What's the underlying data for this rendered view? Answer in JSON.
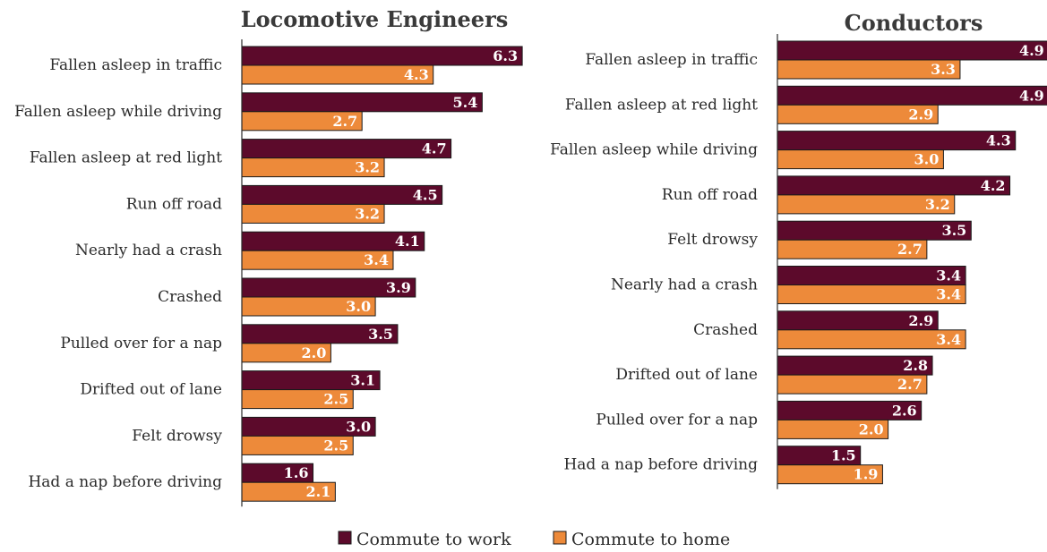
{
  "chart_data": [
    {
      "type": "bar",
      "orientation": "horizontal",
      "title": "Locomotive Engineers",
      "categories": [
        "Fallen asleep in traffic",
        "Fallen asleep while driving",
        "Fallen asleep at red light",
        "Run off road",
        "Nearly had a crash",
        "Crashed",
        "Pulled over for a nap",
        "Drifted out of lane",
        "Felt drowsy",
        "Had a nap before driving"
      ],
      "series": [
        {
          "name": "Commute to work",
          "values": [
            6.3,
            5.4,
            4.7,
            4.5,
            4.1,
            3.9,
            3.5,
            3.1,
            3.0,
            1.6
          ]
        },
        {
          "name": "Commute to home",
          "values": [
            4.3,
            2.7,
            3.2,
            3.2,
            3.4,
            3.0,
            2.0,
            2.5,
            2.5,
            2.1
          ]
        }
      ],
      "xlim": [
        0,
        6.5
      ],
      "grid": false,
      "data_labels": true
    },
    {
      "type": "bar",
      "orientation": "horizontal",
      "title": "Conductors",
      "categories": [
        "Fallen asleep in traffic",
        "Fallen asleep at red light",
        "Fallen asleep while driving",
        "Run off road",
        "Felt drowsy",
        "Nearly had a crash",
        "Crashed",
        "Drifted out of lane",
        "Pulled over for a nap",
        "Had a nap before driving"
      ],
      "series": [
        {
          "name": "Commute to work",
          "values": [
            4.9,
            4.9,
            4.3,
            4.2,
            3.5,
            3.4,
            2.9,
            2.8,
            2.6,
            1.5
          ]
        },
        {
          "name": "Commute to home",
          "values": [
            3.3,
            2.9,
            3.0,
            3.2,
            2.7,
            3.4,
            3.4,
            2.7,
            2.0,
            1.9
          ]
        }
      ],
      "xlim": [
        0,
        5.0
      ],
      "grid": false,
      "data_labels": true
    }
  ],
  "legend": {
    "placement": "bottom-center",
    "items": [
      {
        "label": "Commute to work",
        "color": "#5c0a2b"
      },
      {
        "label": "Commute to home",
        "color": "#ed8a3a"
      }
    ]
  },
  "colors": {
    "work": "#5c0a2b",
    "home": "#ed8a3a",
    "bar_edge": "#1a1a1a",
    "axis": "#2b2b2b"
  }
}
